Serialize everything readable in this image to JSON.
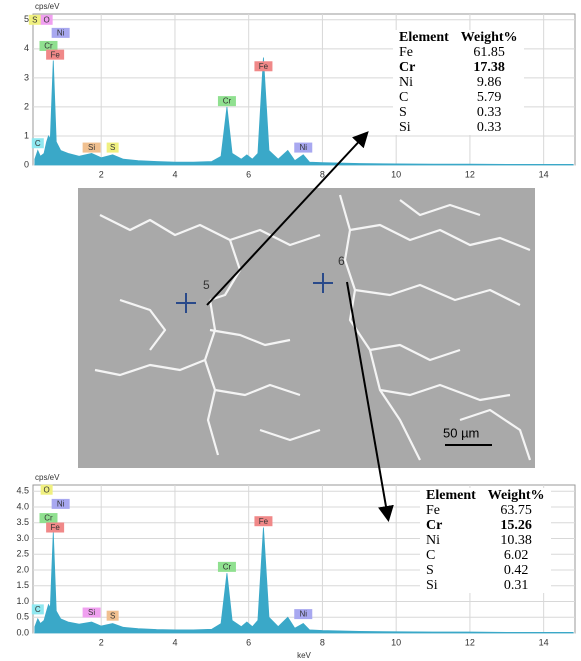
{
  "chart_data": [
    {
      "type": "area",
      "y_label": "cps/eV",
      "color": "#3aa8c8",
      "x": [
        0.2,
        0.28,
        0.35,
        0.45,
        0.52,
        0.57,
        0.62,
        0.7,
        0.78,
        0.9,
        1.1,
        1.4,
        1.74,
        2.0,
        2.31,
        2.6,
        3.0,
        3.5,
        4.0,
        4.5,
        5.0,
        5.25,
        5.41,
        5.55,
        5.8,
        5.95,
        6.1,
        6.25,
        6.4,
        6.55,
        6.8,
        7.06,
        7.25,
        7.48,
        7.65,
        8.0,
        9.0,
        10,
        11,
        12,
        13,
        14,
        14.8
      ],
      "values": [
        0.2,
        0.5,
        0.3,
        0.4,
        0.8,
        1.0,
        0.9,
        3.6,
        0.8,
        0.5,
        0.4,
        0.3,
        0.4,
        0.25,
        0.35,
        0.2,
        0.15,
        0.12,
        0.1,
        0.1,
        0.12,
        0.3,
        2.0,
        0.4,
        0.2,
        0.35,
        0.2,
        0.4,
        3.7,
        0.5,
        0.2,
        0.5,
        0.15,
        0.35,
        0.1,
        0.08,
        0.05,
        0.04,
        0.03,
        0.03,
        0.02,
        0.02,
        0.02
      ],
      "xlim": [
        0.15,
        14.85
      ],
      "xticks": [
        2,
        4,
        6,
        8,
        10,
        12,
        14
      ],
      "ylim": [
        0,
        5.2
      ],
      "yticks": [
        0,
        1,
        2,
        3,
        4,
        5
      ],
      "grid": true,
      "peak_labels": [
        {
          "label": "S",
          "x": 0.2,
          "y": 5.0,
          "color": "#f0f080"
        },
        {
          "label": "O",
          "x": 0.52,
          "y": 5.0,
          "color": "#f0a0f0"
        },
        {
          "label": "Ni",
          "x": 0.9,
          "y": 4.55,
          "color": "#a8a8f0"
        },
        {
          "label": "Cr",
          "x": 0.57,
          "y": 4.1,
          "color": "#90e090"
        },
        {
          "label": "Fe",
          "x": 0.75,
          "y": 3.8,
          "color": "#f08888"
        },
        {
          "label": "C",
          "x": 0.28,
          "y": 0.75,
          "color": "#90e8f0"
        },
        {
          "label": "Si",
          "x": 1.74,
          "y": 0.6,
          "color": "#f0c090"
        },
        {
          "label": "S",
          "x": 2.31,
          "y": 0.6,
          "color": "#f0f080"
        },
        {
          "label": "Cr",
          "x": 5.41,
          "y": 2.2,
          "color": "#90e090"
        },
        {
          "label": "Fe",
          "x": 6.4,
          "y": 3.4,
          "color": "#f08888"
        },
        {
          "label": "Ni",
          "x": 7.48,
          "y": 0.6,
          "color": "#a8a8f0"
        }
      ]
    },
    {
      "type": "area",
      "y_label": "cps/eV",
      "x_label": "keV",
      "color": "#3aa8c8",
      "x": [
        0.2,
        0.28,
        0.35,
        0.45,
        0.52,
        0.57,
        0.62,
        0.7,
        0.78,
        0.9,
        1.1,
        1.4,
        1.74,
        2.0,
        2.31,
        2.6,
        3.0,
        3.5,
        4.0,
        4.5,
        5.0,
        5.25,
        5.41,
        5.55,
        5.8,
        5.95,
        6.1,
        6.25,
        6.4,
        6.55,
        6.8,
        7.06,
        7.25,
        7.48,
        7.65,
        8.0,
        9.0,
        10,
        11,
        12,
        13,
        14,
        14.8
      ],
      "values": [
        0.2,
        0.45,
        0.3,
        0.4,
        0.7,
        0.9,
        0.8,
        3.2,
        0.7,
        0.45,
        0.35,
        0.28,
        0.35,
        0.22,
        0.3,
        0.18,
        0.14,
        0.11,
        0.1,
        0.1,
        0.12,
        0.3,
        1.9,
        0.4,
        0.2,
        0.35,
        0.2,
        0.4,
        3.35,
        0.5,
        0.2,
        0.5,
        0.15,
        0.3,
        0.1,
        0.08,
        0.05,
        0.04,
        0.03,
        0.03,
        0.02,
        0.02,
        0.02
      ],
      "xlim": [
        0.15,
        14.85
      ],
      "xticks": [
        2,
        4,
        6,
        8,
        10,
        12,
        14
      ],
      "ylim": [
        0,
        4.7
      ],
      "yticks": [
        {
          "value": 0,
          "label": "0.0"
        },
        {
          "value": 0.5,
          "label": "0.5"
        },
        {
          "value": 1,
          "label": "1.0"
        },
        {
          "value": 1.5,
          "label": "1.5"
        },
        {
          "value": 2,
          "label": "2.0"
        },
        {
          "value": 2.5,
          "label": "2.5"
        },
        {
          "value": 3,
          "label": "3.0"
        },
        {
          "value": 3.5,
          "label": "3.5"
        },
        {
          "value": 4,
          "label": "4.0"
        },
        {
          "value": 4.5,
          "label": "4.5"
        }
      ],
      "grid": true,
      "peak_labels": [
        {
          "label": "O",
          "x": 0.52,
          "y": 4.55,
          "color": "#f0f080"
        },
        {
          "label": "Ni",
          "x": 0.9,
          "y": 4.1,
          "color": "#a8a8f0"
        },
        {
          "label": "Cr",
          "x": 0.57,
          "y": 3.65,
          "color": "#90e090"
        },
        {
          "label": "Fe",
          "x": 0.75,
          "y": 3.35,
          "color": "#f08888"
        },
        {
          "label": "C",
          "x": 0.28,
          "y": 0.75,
          "color": "#90e8f0"
        },
        {
          "label": "Si",
          "x": 1.74,
          "y": 0.65,
          "color": "#f0a0f0"
        },
        {
          "label": "S",
          "x": 2.31,
          "y": 0.55,
          "color": "#f0c090"
        },
        {
          "label": "Cr",
          "x": 5.41,
          "y": 2.1,
          "color": "#90e090"
        },
        {
          "label": "Fe",
          "x": 6.4,
          "y": 3.55,
          "color": "#f08888"
        },
        {
          "label": "Ni",
          "x": 7.48,
          "y": 0.6,
          "color": "#a8a8f0"
        }
      ]
    }
  ],
  "tables": [
    {
      "rows": [
        [
          "Element",
          "Weight%"
        ],
        [
          "Fe",
          "61.85"
        ],
        [
          "Cr",
          "17.38"
        ],
        [
          "Ni",
          "9.86"
        ],
        [
          "C",
          "5.79"
        ],
        [
          "S",
          "0.33"
        ],
        [
          "Si",
          "0.33"
        ]
      ]
    },
    {
      "rows": [
        [
          "Element",
          "Weight%"
        ],
        [
          "Fe",
          "63.75"
        ],
        [
          "Cr",
          "15.26"
        ],
        [
          "Ni",
          "10.38"
        ],
        [
          "C",
          "6.02"
        ],
        [
          "S",
          "0.42"
        ],
        [
          "Si",
          "0.31"
        ]
      ]
    }
  ],
  "image": {
    "points": [
      "5",
      "6"
    ],
    "scale_bar": "50 µm"
  }
}
